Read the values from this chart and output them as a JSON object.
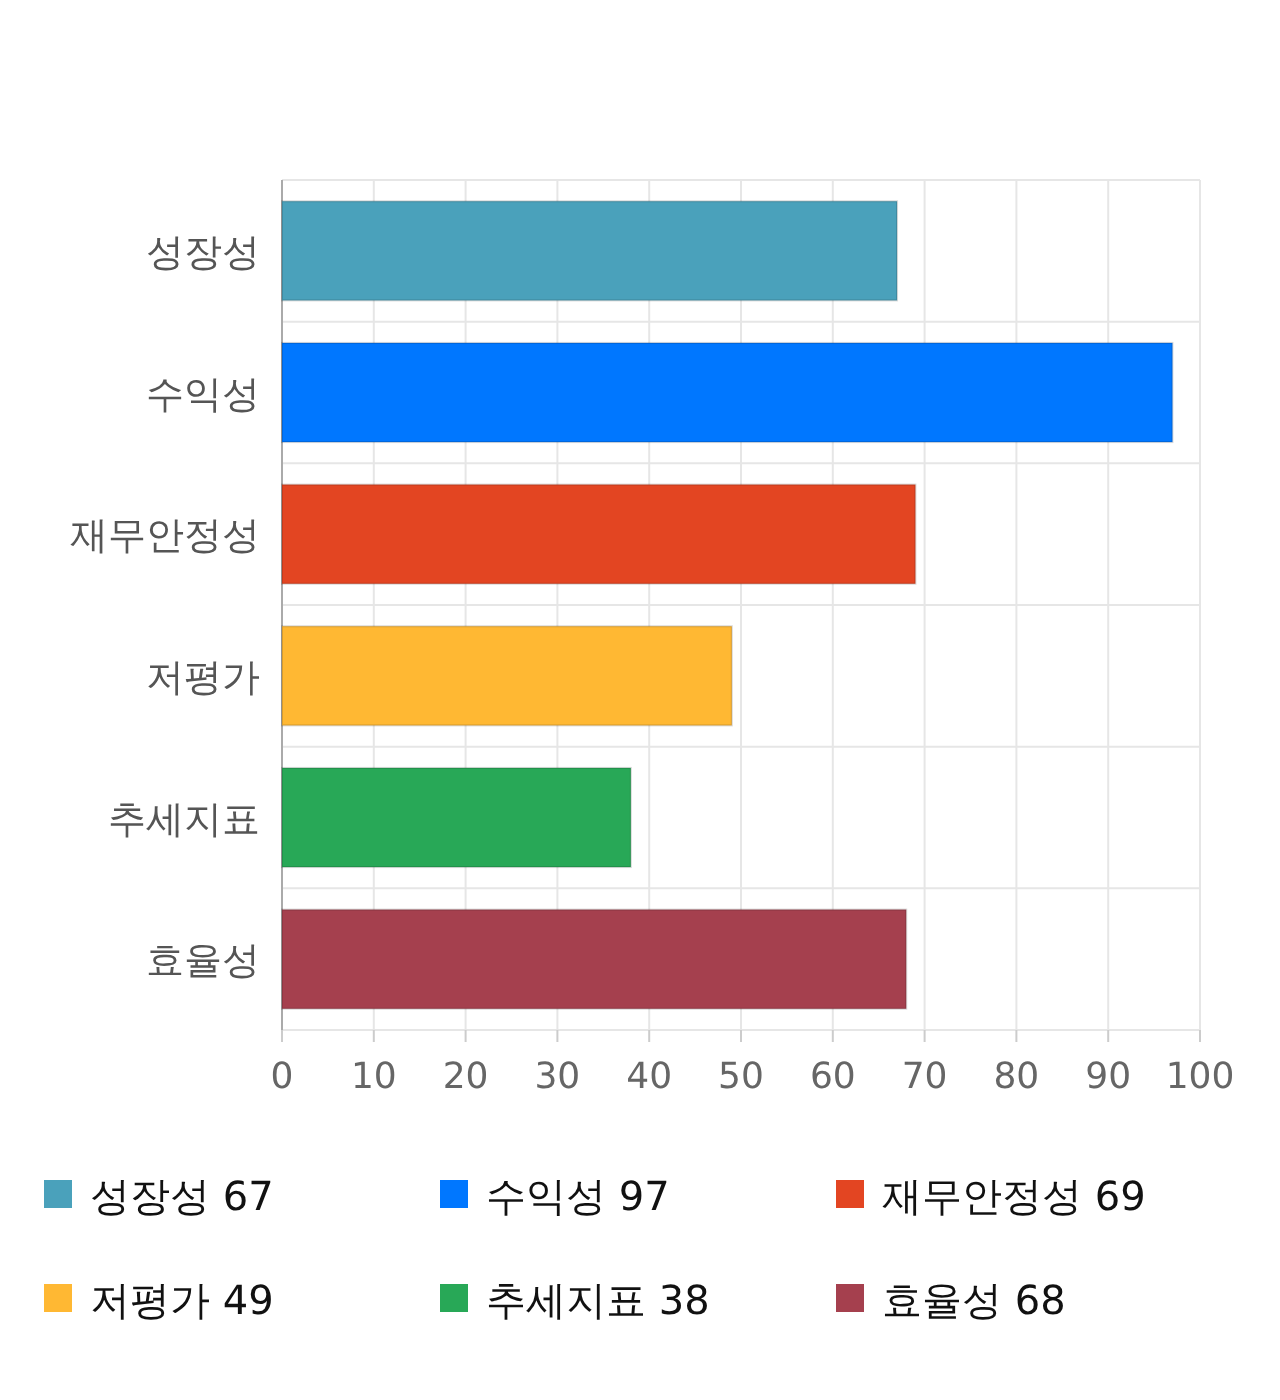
{
  "chart_data": {
    "type": "bar",
    "orientation": "horizontal",
    "categories": [
      "성장성",
      "수익성",
      "재무안정성",
      "저평가",
      "추세지표",
      "효율성"
    ],
    "series": [
      {
        "name": "성장성 67",
        "color": "#4aa1bb",
        "values": [
          67,
          null,
          null,
          null,
          null,
          null
        ]
      },
      {
        "name": "수익성 97",
        "color": "#0077ff",
        "values": [
          null,
          97,
          null,
          null,
          null,
          null
        ]
      },
      {
        "name": "재무안정성 69",
        "color": "#e34522",
        "values": [
          null,
          null,
          69,
          null,
          null,
          null
        ]
      },
      {
        "name": "저평가 49",
        "color": "#ffb833",
        "values": [
          null,
          null,
          null,
          49,
          null,
          null
        ]
      },
      {
        "name": "추세지표 38",
        "color": "#28a857",
        "values": [
          null,
          null,
          null,
          null,
          38,
          null
        ]
      },
      {
        "name": "효율성 68",
        "color": "#a5404e",
        "values": [
          null,
          null,
          null,
          null,
          null,
          68
        ]
      }
    ],
    "xlim": [
      0,
      100
    ],
    "xticks": [
      0,
      10,
      20,
      30,
      40,
      50,
      60,
      70,
      80,
      90,
      100
    ],
    "grid": true,
    "legend": "bottom",
    "stacked": true
  }
}
